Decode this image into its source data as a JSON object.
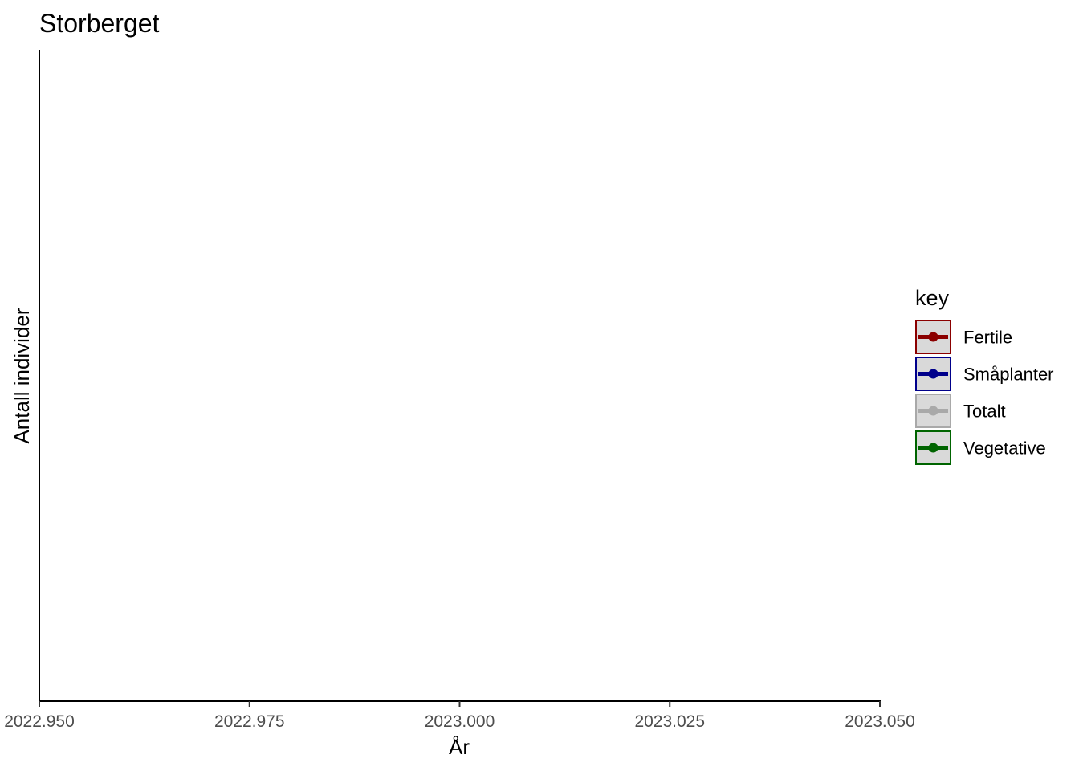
{
  "chart_data": {
    "type": "line",
    "title": "Storberget",
    "xlabel": "År",
    "ylabel": "Antall individer",
    "xlim": [
      2022.95,
      2023.05
    ],
    "x_ticks": [
      2022.95,
      2022.975,
      2023.0,
      2023.025,
      2023.05
    ],
    "x_tick_labels": [
      "2022.950",
      "2022.975",
      "2023.000",
      "2023.025",
      "2023.050"
    ],
    "grid": false,
    "legend": {
      "title": "key",
      "position": "right",
      "entries": [
        {
          "label": "Fertile",
          "color": "#8b0000"
        },
        {
          "label": "Småplanter",
          "color": "#00008b"
        },
        {
          "label": "Totalt",
          "color": "#a9a9a9"
        },
        {
          "label": "Vegetative",
          "color": "#006400"
        }
      ]
    },
    "series": []
  }
}
